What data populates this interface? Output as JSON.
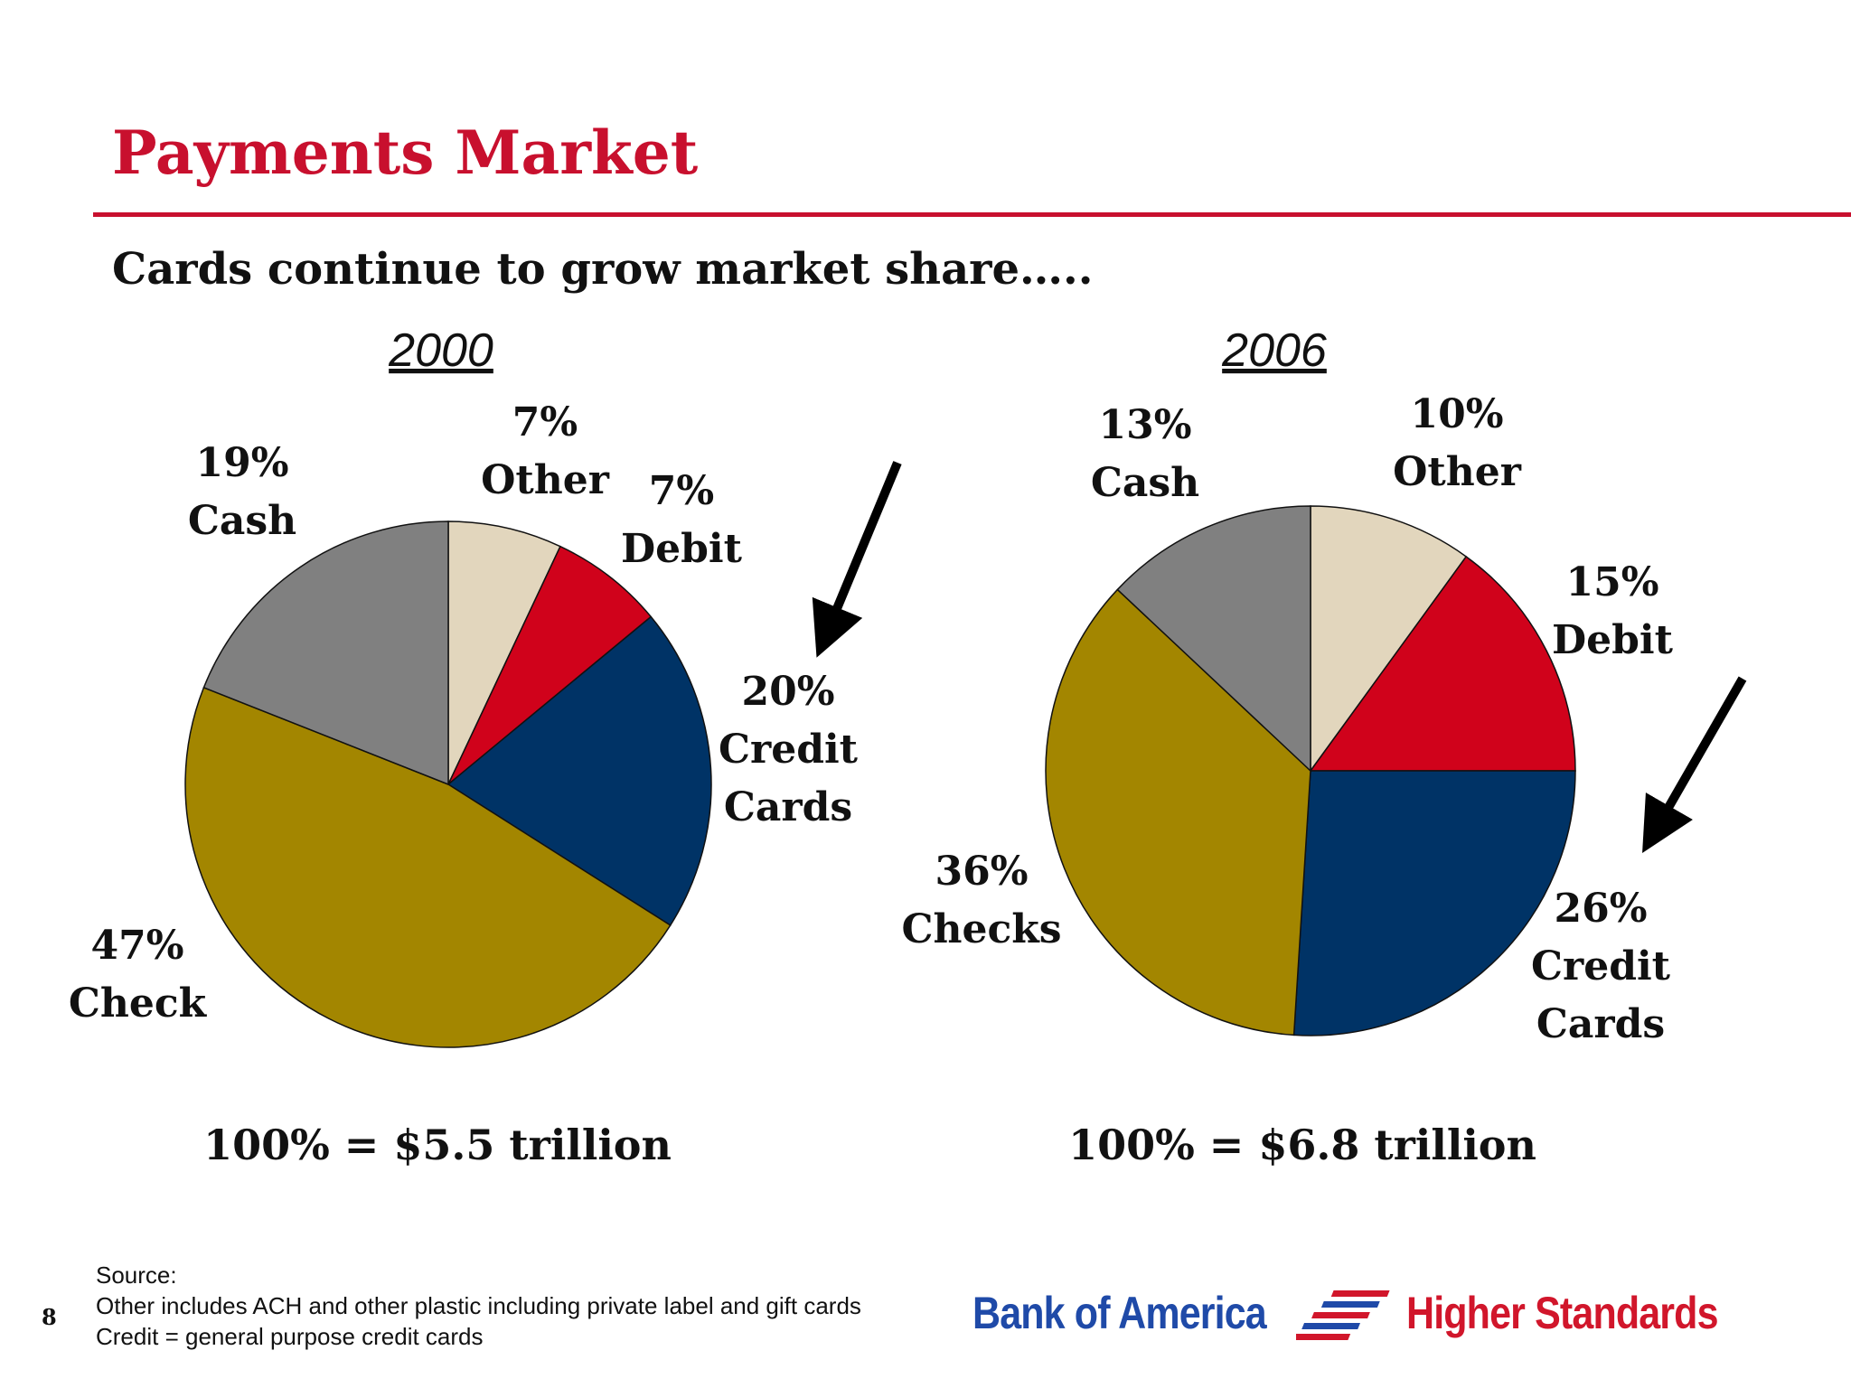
{
  "title": "Payments Market",
  "subtitle": "Cards continue to grow market share…..",
  "colors": {
    "accent": "#c8102e",
    "Other": "#e2d6bd",
    "Debit": "#d0021b",
    "Credit Cards": "#003366",
    "Check": "#a38600",
    "Checks": "#a38600",
    "Cash": "#808080",
    "brand_blue": "#1f4aa8",
    "brand_red": "#d1162b"
  },
  "chart_data": [
    {
      "type": "pie",
      "title": "2000",
      "total_label": "100% = $5.5 trillion",
      "slices": [
        {
          "name": "Other",
          "value": 7,
          "pct_label": "7%",
          "label_lines": [
            "Other"
          ]
        },
        {
          "name": "Debit",
          "value": 7,
          "pct_label": "7%",
          "label_lines": [
            "Debit"
          ]
        },
        {
          "name": "Credit Cards",
          "value": 20,
          "pct_label": "20%",
          "label_lines": [
            "Credit",
            "Cards"
          ]
        },
        {
          "name": "Check",
          "value": 47,
          "pct_label": "47%",
          "label_lines": [
            "Check"
          ]
        },
        {
          "name": "Cash",
          "value": 19,
          "pct_label": "19%",
          "label_lines": [
            "Cash"
          ]
        }
      ]
    },
    {
      "type": "pie",
      "title": "2006",
      "total_label": "100% = $6.8 trillion",
      "slices": [
        {
          "name": "Other",
          "value": 10,
          "pct_label": "10%",
          "label_lines": [
            "Other"
          ]
        },
        {
          "name": "Debit",
          "value": 15,
          "pct_label": "15%",
          "label_lines": [
            "Debit"
          ]
        },
        {
          "name": "Credit Cards",
          "value": 26,
          "pct_label": "26%",
          "label_lines": [
            "Credit",
            "Cards"
          ]
        },
        {
          "name": "Checks",
          "value": 36,
          "pct_label": "36%",
          "label_lines": [
            "Checks"
          ]
        },
        {
          "name": "Cash",
          "value": 13,
          "pct_label": "13%",
          "label_lines": [
            "Cash"
          ]
        }
      ]
    }
  ],
  "footer": {
    "page_number": "8",
    "source_lines": [
      "Source:",
      "Other includes ACH and other plastic including private label and gift cards",
      "Credit = general purpose credit cards"
    ],
    "logo_brand": "Bank of America",
    "logo_tagline": "Higher Standards"
  }
}
